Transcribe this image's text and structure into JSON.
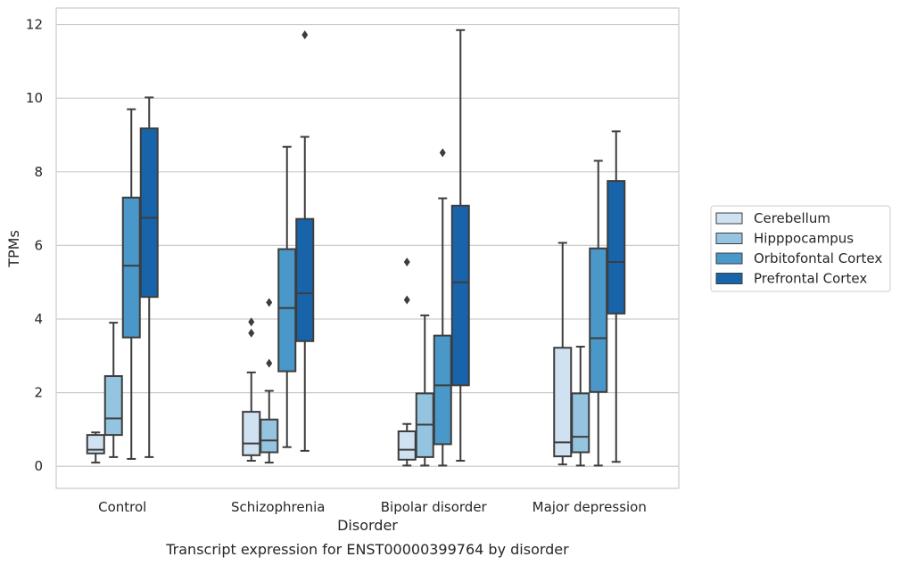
{
  "chart_data": {
    "type": "box",
    "title": "Transcript expression for ENST00000399764 by disorder",
    "xlabel": "Disorder",
    "ylabel": "TPMs",
    "ylim": [
      -0.6,
      12.45
    ],
    "yticks": [
      "0",
      "2",
      "4",
      "6",
      "8",
      "10",
      "12"
    ],
    "categories": [
      "Control",
      "Schizophrenia",
      "Bipolar disorder",
      "Major depression"
    ],
    "grid": "horizontal",
    "legend_position": "right",
    "series": [
      {
        "name": "Cerebellum",
        "color": "#d0e1f2",
        "boxes": [
          {
            "whislo": 0.1,
            "q1": 0.35,
            "med": 0.45,
            "q3": 0.85,
            "whishi": 0.92,
            "fliers": []
          },
          {
            "whislo": 0.15,
            "q1": 0.3,
            "med": 0.62,
            "q3": 1.48,
            "whishi": 2.55,
            "fliers": [
              3.62,
              3.92
            ]
          },
          {
            "whislo": 0.02,
            "q1": 0.18,
            "med": 0.45,
            "q3": 0.95,
            "whishi": 1.15,
            "fliers": [
              4.52,
              5.55
            ]
          },
          {
            "whislo": 0.05,
            "q1": 0.27,
            "med": 0.65,
            "q3": 3.22,
            "whishi": 6.07,
            "fliers": []
          }
        ]
      },
      {
        "name": "Hipppocampus",
        "color": "#94c4df",
        "boxes": [
          {
            "whislo": 0.25,
            "q1": 0.85,
            "med": 1.3,
            "q3": 2.45,
            "whishi": 3.9,
            "fliers": []
          },
          {
            "whislo": 0.1,
            "q1": 0.38,
            "med": 0.7,
            "q3": 1.27,
            "whishi": 2.05,
            "fliers": [
              2.8,
              4.45
            ]
          },
          {
            "whislo": 0.02,
            "q1": 0.25,
            "med": 1.13,
            "q3": 1.98,
            "whishi": 4.1,
            "fliers": []
          },
          {
            "whislo": 0.02,
            "q1": 0.38,
            "med": 0.8,
            "q3": 1.98,
            "whishi": 3.25,
            "fliers": []
          }
        ]
      },
      {
        "name": "Orbitofontal Cortex",
        "color": "#4a98c9",
        "boxes": [
          {
            "whislo": 0.2,
            "q1": 3.5,
            "med": 5.45,
            "q3": 7.3,
            "whishi": 9.7,
            "fliers": []
          },
          {
            "whislo": 0.52,
            "q1": 2.58,
            "med": 4.3,
            "q3": 5.9,
            "whishi": 8.68,
            "fliers": []
          },
          {
            "whislo": 0.02,
            "q1": 0.6,
            "med": 2.2,
            "q3": 3.55,
            "whishi": 7.28,
            "fliers": [
              8.52
            ]
          },
          {
            "whislo": 0.02,
            "q1": 2.02,
            "med": 3.48,
            "q3": 5.92,
            "whishi": 8.3,
            "fliers": []
          }
        ]
      },
      {
        "name": "Prefrontal Cortex",
        "color": "#1764ab",
        "boxes": [
          {
            "whislo": 0.25,
            "q1": 4.6,
            "med": 6.75,
            "q3": 9.18,
            "whishi": 10.02,
            "fliers": []
          },
          {
            "whislo": 0.42,
            "q1": 3.4,
            "med": 4.7,
            "q3": 6.72,
            "whishi": 8.95,
            "fliers": [
              11.72
            ]
          },
          {
            "whislo": 0.15,
            "q1": 2.2,
            "med": 5.0,
            "q3": 7.08,
            "whishi": 11.85,
            "fliers": []
          },
          {
            "whislo": 0.12,
            "q1": 4.15,
            "med": 5.55,
            "q3": 7.75,
            "whishi": 9.1,
            "fliers": []
          }
        ]
      }
    ]
  }
}
